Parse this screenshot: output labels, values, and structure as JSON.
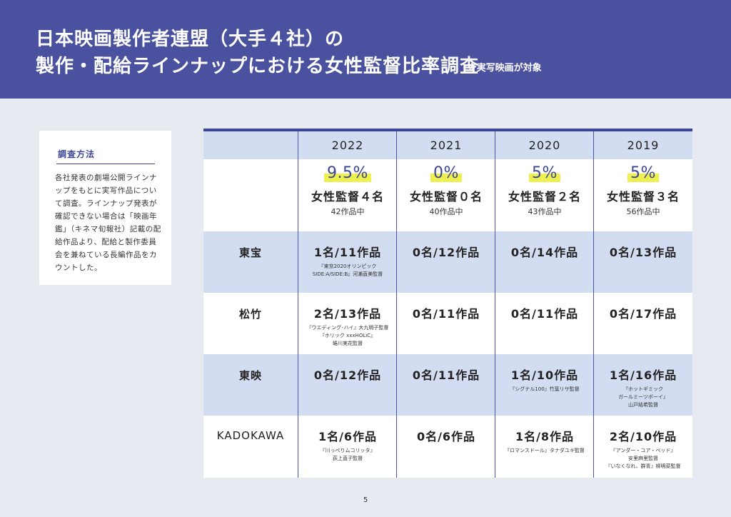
{
  "header": {
    "title_line1": "日本映画製作者連盟（大手４社）の",
    "title_line2": "製作・配給ラインナップにおける女性監督比率調査",
    "note": "※実写映画が対象"
  },
  "method": {
    "title": "調査方法",
    "body": "各社発表の劇場公開ラインナップをもとに実写作品について調査。ラインナップ発表が確認できない場合は「映画年鑑」（キネマ旬報社）記載の配給作品より、配給と製作委員会を兼ねている長編作品をカウントした。"
  },
  "table": {
    "years": [
      "2022",
      "2021",
      "2020",
      "2019"
    ],
    "summary": [
      {
        "pct": "9.5%",
        "count": "女性監督４名",
        "works": "42作品中"
      },
      {
        "pct": "0%",
        "count": "女性監督０名",
        "works": "40作品中"
      },
      {
        "pct": "5%",
        "count": "女性監督２名",
        "works": "43作品中"
      },
      {
        "pct": "5%",
        "count": "女性監督３名",
        "works": "56作品中"
      }
    ],
    "rows": [
      {
        "company": "東宝",
        "cells": [
          {
            "main": "1名/11作品",
            "note": "『東京2020オリンピック\nSIDE:A/SIDE:B』河瀨直美監督"
          },
          {
            "main": "0名/12作品",
            "note": ""
          },
          {
            "main": "0名/14作品",
            "note": ""
          },
          {
            "main": "0名/13作品",
            "note": ""
          }
        ]
      },
      {
        "company": "松竹",
        "cells": [
          {
            "main": "2名/13作品",
            "note": "『ウエディング･ハイ』大九明子監督\n『ホリック xxxHOLiC』\n蜷川実花監督"
          },
          {
            "main": "0名/11作品",
            "note": ""
          },
          {
            "main": "0名/11作品",
            "note": ""
          },
          {
            "main": "0名/17作品",
            "note": ""
          }
        ]
      },
      {
        "company": "東映",
        "cells": [
          {
            "main": "0名/12作品",
            "note": ""
          },
          {
            "main": "0名/11作品",
            "note": ""
          },
          {
            "main": "1名/10作品",
            "note": "『シグナル100』竹葉リサ監督"
          },
          {
            "main": "1名/16作品",
            "note": "『ホットギミック\nガールミーツボーイ』\n山戸結希監督"
          }
        ]
      },
      {
        "company": "KADOKAWA",
        "cells": [
          {
            "main": "1名/6作品",
            "note": "『川っぺりムコリッタ』\n荻上直子監督"
          },
          {
            "main": "0名/6作品",
            "note": ""
          },
          {
            "main": "1名/8作品",
            "note": "『ロマンスドール』タナダユキ監督"
          },
          {
            "main": "2名/10作品",
            "note": "『アンダー・ユア・ベッド』\n安里麻里監督\n『いなくなれ、群青』柳明菜監督"
          }
        ]
      }
    ]
  },
  "page_number": "5",
  "colors": {
    "header_bg": "#4a519e",
    "accent": "#3d4694",
    "band": "#d3ddf1",
    "highlight": "#eef04f"
  }
}
